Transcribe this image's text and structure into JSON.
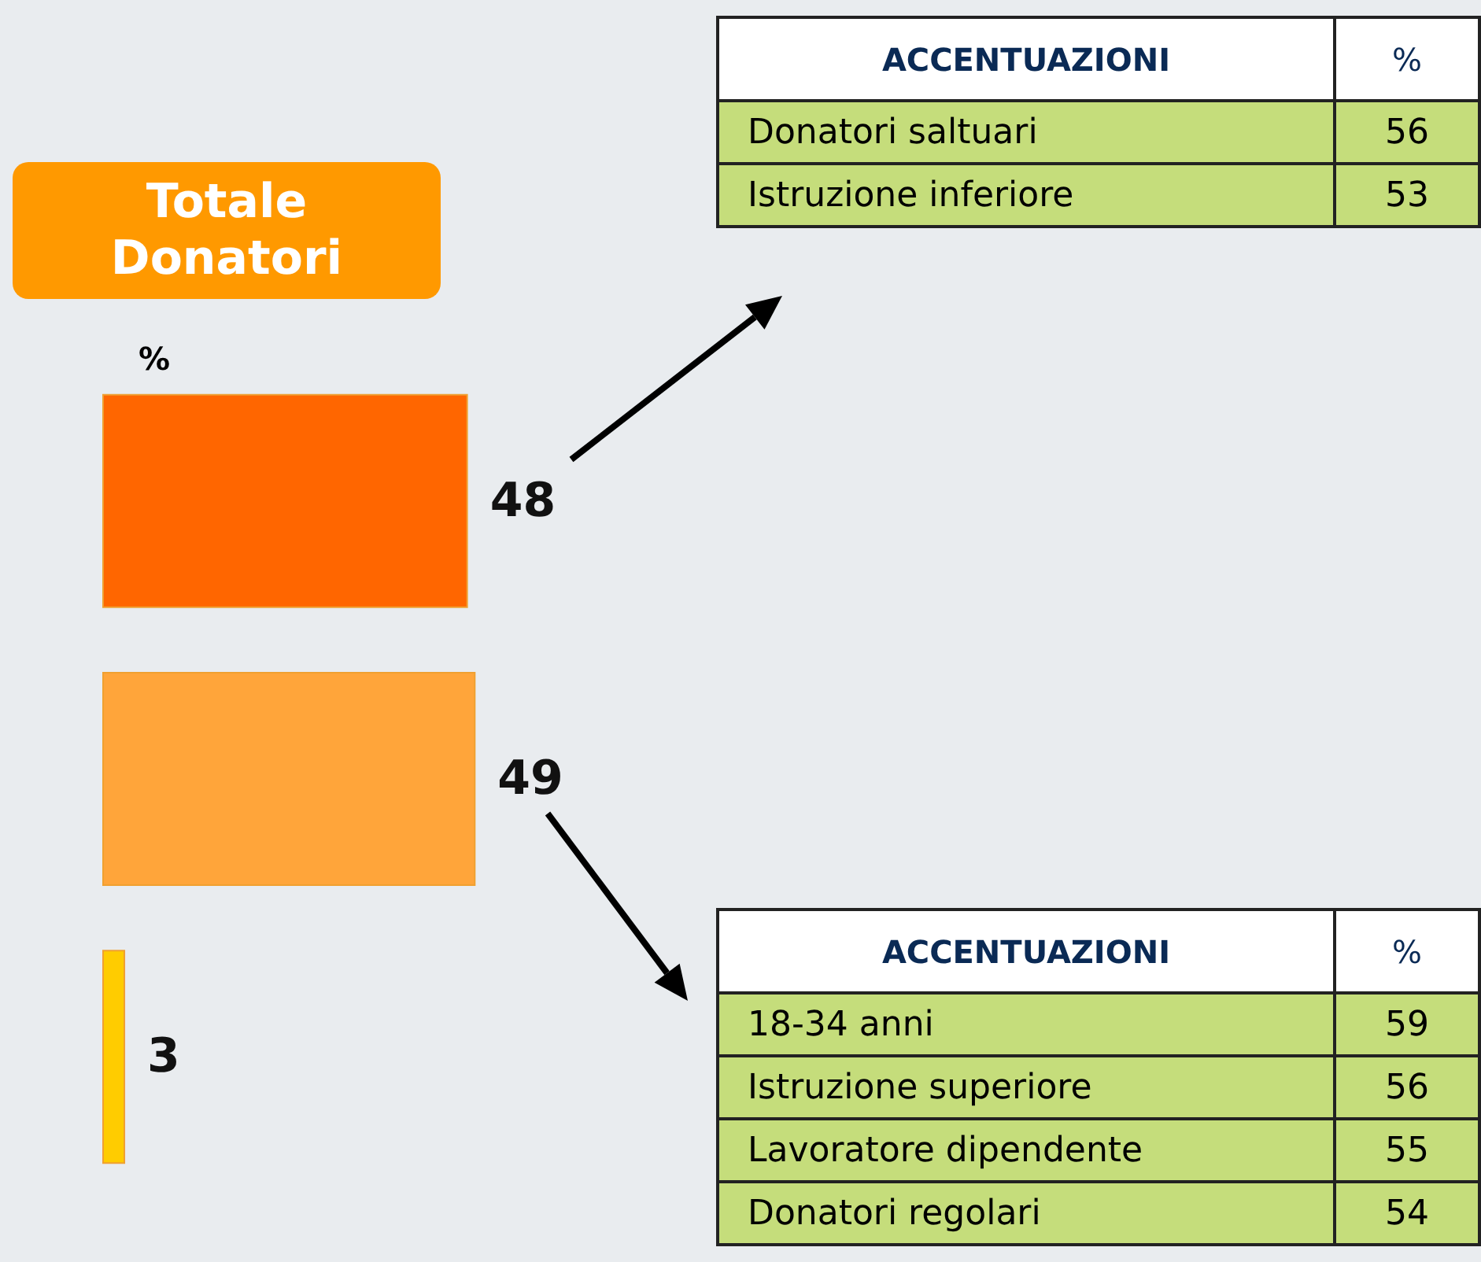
{
  "chart_data": [
    {
      "type": "bar",
      "orientation": "horizontal",
      "title": "Totale Donatori",
      "xlabel": "%",
      "categories": [
        null,
        null,
        null
      ],
      "values": [
        48,
        49,
        3
      ],
      "colors": [
        "#ff6600",
        "#ffa53a",
        "#ffcc00"
      ],
      "tick_labels": false,
      "data_labels": true
    },
    {
      "type": "other",
      "title": "ACCENTUAZIONI",
      "ylabel": "%",
      "categories": [
        "Donatori saltuari",
        "Istruzione inferiore"
      ],
      "values": [
        56,
        53
      ],
      "color": "#c5dd7b",
      "data_labels": true
    },
    {
      "type": "other",
      "title": "ACCENTUAZIONI",
      "ylabel": "%",
      "categories": [
        "18-34 anni",
        "Istruzione superiore",
        "Lavoratore dipendente",
        "Donatori regolari"
      ],
      "values": [
        59,
        56,
        55,
        54
      ],
      "color": "#c5dd7b",
      "data_labels": true
    }
  ]
}
